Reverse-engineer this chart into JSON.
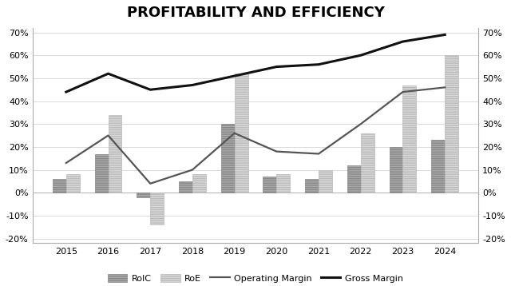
{
  "title": "PROFITABILITY AND EFFICIENCY",
  "years": [
    2015,
    2016,
    2017,
    2018,
    2019,
    2020,
    2021,
    2022,
    2023,
    2024
  ],
  "roic": [
    0.06,
    0.17,
    -0.02,
    0.05,
    0.3,
    0.07,
    0.06,
    0.12,
    0.2,
    0.23
  ],
  "roe": [
    0.08,
    0.34,
    -0.14,
    0.08,
    0.52,
    0.08,
    0.1,
    0.26,
    0.47,
    0.6
  ],
  "operating_margin": [
    0.13,
    0.25,
    0.04,
    0.1,
    0.26,
    0.18,
    0.17,
    0.3,
    0.44,
    0.46
  ],
  "gross_margin": [
    0.44,
    0.52,
    0.45,
    0.47,
    0.51,
    0.55,
    0.56,
    0.6,
    0.66,
    0.69
  ],
  "ylim": [
    -0.22,
    0.72
  ],
  "yticks": [
    -0.2,
    -0.1,
    0.0,
    0.1,
    0.2,
    0.3,
    0.4,
    0.5,
    0.6,
    0.7
  ],
  "bar_width": 0.32,
  "roic_color": "#aaaaaa",
  "roe_color": "#d8d8d8",
  "roic_edge": "#888888",
  "roe_edge": "#bbbbbb",
  "op_margin_color": "#555555",
  "gross_margin_color": "#111111",
  "background_color": "#ffffff",
  "title_fontsize": 13,
  "legend_labels": [
    "RoIC",
    "RoE",
    "Operating Margin",
    "Gross Margin"
  ]
}
